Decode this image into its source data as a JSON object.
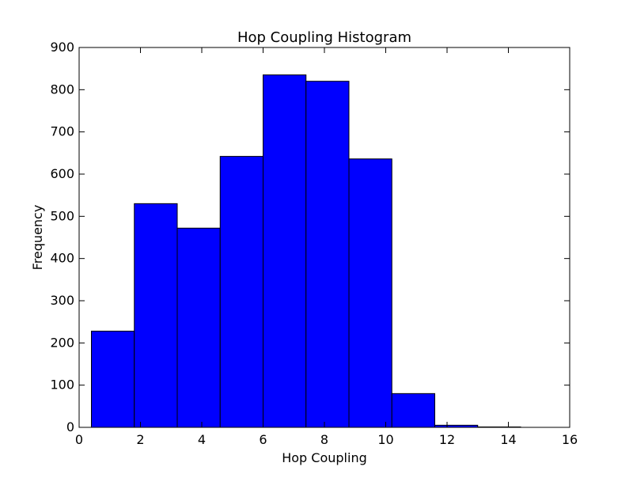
{
  "chart_data": {
    "type": "bar",
    "title": "Hop Coupling Histogram",
    "xlabel": "Hop Coupling",
    "ylabel": "Frequency",
    "xlim": [
      0,
      16
    ],
    "ylim": [
      0,
      900
    ],
    "xticks": [
      0,
      2,
      4,
      6,
      8,
      10,
      12,
      14,
      16
    ],
    "yticks": [
      0,
      100,
      200,
      300,
      400,
      500,
      600,
      700,
      800,
      900
    ],
    "bins": [
      {
        "x0": 0.4,
        "x1": 1.8,
        "value": 228
      },
      {
        "x0": 1.8,
        "x1": 3.2,
        "value": 530
      },
      {
        "x0": 3.2,
        "x1": 4.6,
        "value": 472
      },
      {
        "x0": 4.6,
        "x1": 6.0,
        "value": 642
      },
      {
        "x0": 6.0,
        "x1": 7.4,
        "value": 835
      },
      {
        "x0": 7.4,
        "x1": 8.8,
        "value": 820
      },
      {
        "x0": 8.8,
        "x1": 10.2,
        "value": 636
      },
      {
        "x0": 10.2,
        "x1": 11.6,
        "value": 80
      },
      {
        "x0": 11.6,
        "x1": 13.0,
        "value": 5
      },
      {
        "x0": 13.0,
        "x1": 14.4,
        "value": 1
      }
    ],
    "bar_color": "#0000ff",
    "edge_color": "#000000",
    "grid": false,
    "legend": null
  }
}
